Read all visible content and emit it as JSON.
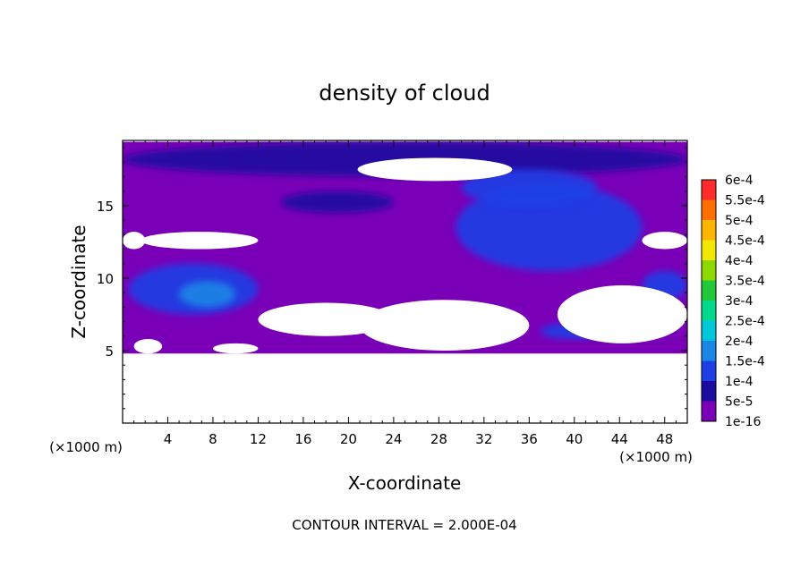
{
  "chart_data": {
    "type": "heatmap",
    "title": "density of cloud",
    "xlabel": "X-coordinate",
    "ylabel": "Z-coordinate",
    "x_unit": "(×1000 m)",
    "z_unit": "(×1000 m)",
    "xlim": [
      0,
      50
    ],
    "ylim": [
      0,
      19.5
    ],
    "x_ticks": [
      "4",
      "8",
      "12",
      "16",
      "20",
      "24",
      "28",
      "32",
      "36",
      "40",
      "44",
      "48"
    ],
    "y_ticks": [
      "5",
      "10",
      "15"
    ],
    "footer": "CONTOUR INTERVAL = 2.000E-04",
    "colorbar": {
      "labels": [
        "1e-16",
        "5e-5",
        "1e-4",
        "1.5e-4",
        "2e-4",
        "2.5e-4",
        "3e-4",
        "3.5e-4",
        "4e-4",
        "4.5e-4",
        "5e-4",
        "5.5e-4",
        "6e-4"
      ],
      "colors": [
        "#7a00b8",
        "#1a0d9e",
        "#1f3fe6",
        "#1a86e6",
        "#00c8d8",
        "#00d88c",
        "#22c83c",
        "#8cd800",
        "#f0e800",
        "#ffb400",
        "#ff6e00",
        "#ff2a2a",
        "#ff9090"
      ]
    },
    "cloud_extent": {
      "z_bottom": 4.8,
      "z_top": 19.4
    },
    "clear_regions": [
      {
        "x": [
          1.6,
          12.0
        ],
        "z": [
          12.0,
          13.2
        ]
      },
      {
        "x": [
          20.8,
          34.5
        ],
        "z": [
          16.7,
          18.3
        ]
      },
      {
        "x": [
          12.0,
          24.0
        ],
        "z": [
          6.0,
          8.3
        ]
      },
      {
        "x": [
          1.0,
          3.5
        ],
        "z": [
          4.8,
          5.8
        ]
      },
      {
        "x": [
          8.0,
          12.0
        ],
        "z": [
          4.8,
          5.5
        ]
      },
      {
        "x": [
          21.0,
          36.0
        ],
        "z": [
          5.0,
          8.5
        ]
      },
      {
        "x": [
          38.5,
          50.0
        ],
        "z": [
          5.5,
          9.5
        ]
      },
      {
        "x": [
          46.0,
          50.0
        ],
        "z": [
          12.0,
          13.2
        ]
      },
      {
        "x": [
          0.0,
          2.0
        ],
        "z": [
          12.0,
          13.2
        ]
      }
    ],
    "high_density_regions": [
      {
        "x": [
          0.0,
          50.0
        ],
        "z": [
          17.0,
          19.4
        ],
        "level": 1
      },
      {
        "x": [
          0.5,
          12.0
        ],
        "z": [
          7.5,
          11.0
        ],
        "level": 2
      },
      {
        "x": [
          29.5,
          46.0
        ],
        "z": [
          10.5,
          16.5
        ],
        "level": 2
      },
      {
        "x": [
          37.0,
          43.0
        ],
        "z": [
          5.8,
          6.9
        ],
        "level": 2
      },
      {
        "x": [
          46.0,
          50.0
        ],
        "z": [
          8.5,
          10.5
        ],
        "level": 2
      },
      {
        "x": [
          14.0,
          24.0
        ],
        "z": [
          14.5,
          16.0
        ],
        "level": 1
      },
      {
        "x": [
          30.0,
          42.0
        ],
        "z": [
          15.0,
          17.5
        ],
        "level": 2
      },
      {
        "x": [
          5.0,
          10.0
        ],
        "z": [
          8.0,
          9.8
        ],
        "level": 3
      }
    ]
  }
}
